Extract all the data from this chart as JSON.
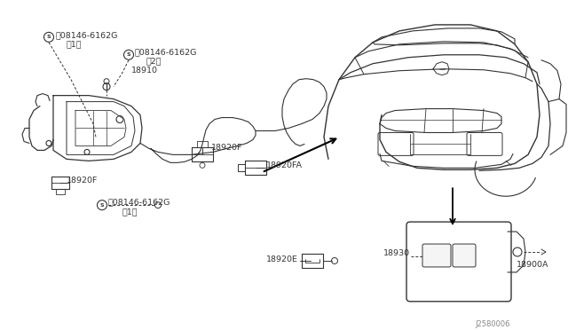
{
  "bg_color": "#ffffff",
  "fig_width": 6.4,
  "fig_height": 3.72,
  "dpi": 100,
  "lc": "#333333",
  "tc": "#333333",
  "diagram_code": "J2580006",
  "labels": {
    "bolt1": "Ⓝ08146-6162G",
    "bolt1_sub": "（1）",
    "bolt2": "Ⓝ08146-6162G",
    "bolt2_sub": "（2）",
    "bolt3": "Ⓝ08146-6162G",
    "bolt3_sub": "（1）",
    "p18910": "18910",
    "p18920F_a": "18920F",
    "p18920F_b": "18920F",
    "p18920FA": "18920FA",
    "p18920E": "18920E",
    "p18930": "18930",
    "p18900A": "18900A"
  }
}
